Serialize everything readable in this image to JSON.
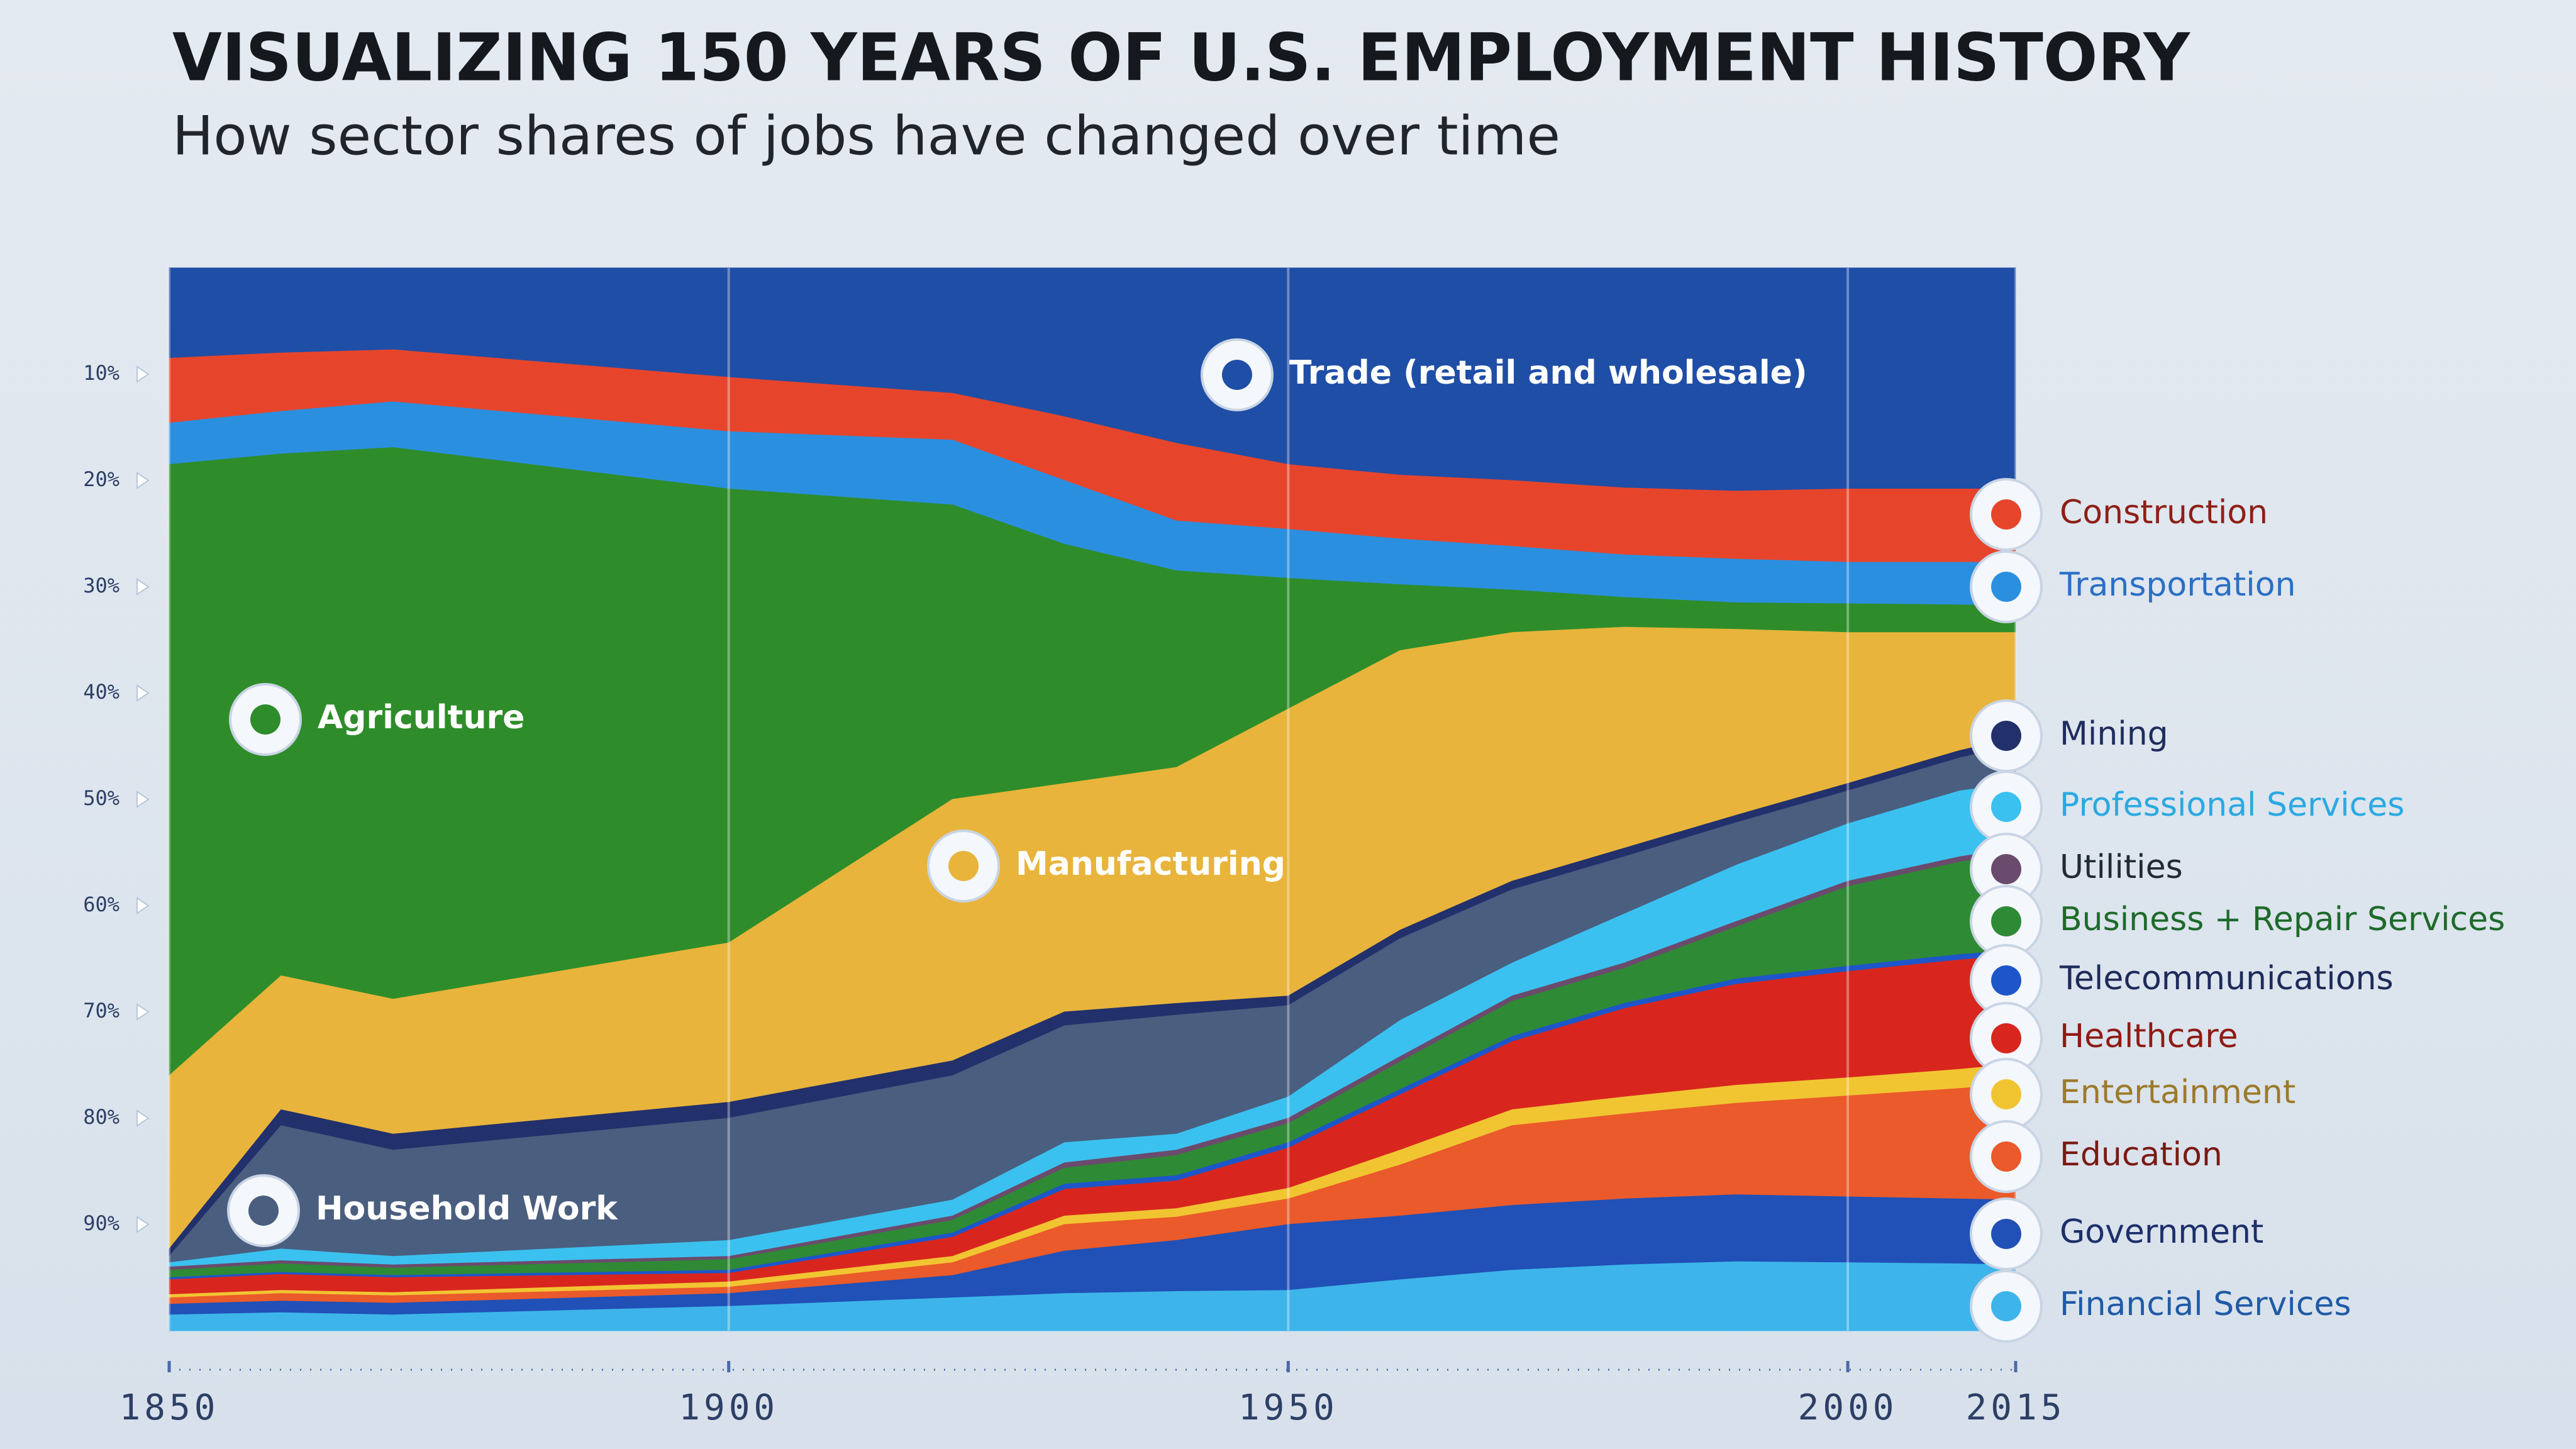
{
  "chart_data": {
    "type": "stacked_area",
    "title": "VISUALIZING 150 YEARS OF U.S. EMPLOYMENT HISTORY",
    "subtitle": "How sector shares of jobs have changed over time",
    "x": [
      1850,
      1860,
      1870,
      1900,
      1920,
      1930,
      1940,
      1950,
      1960,
      1970,
      1980,
      1990,
      2000,
      2010,
      2015
    ],
    "xlim": [
      1850,
      2015
    ],
    "xticks": [
      1850,
      1900,
      1950,
      2000,
      2015
    ],
    "ylim": [
      0,
      100
    ],
    "y_reversed": true,
    "yticks": [
      {
        "value": 10,
        "label": "10%"
      },
      {
        "value": 20,
        "label": "20%"
      },
      {
        "value": 30,
        "label": "30%"
      },
      {
        "value": 40,
        "label": "40%"
      },
      {
        "value": 50,
        "label": "50%"
      },
      {
        "value": 60,
        "label": "60%"
      },
      {
        "value": 70,
        "label": "70%"
      },
      {
        "value": 80,
        "label": "80%"
      },
      {
        "value": 90,
        "label": "90%"
      }
    ],
    "grid": true,
    "series": [
      {
        "name": "Trade (retail and wholesale)",
        "color": "#1f4ea6",
        "values": [
          8.5,
          8,
          7.7,
          10.3,
          11.8,
          14,
          16.5,
          18.5,
          19.5,
          20,
          20.7,
          21,
          20.8,
          20.8,
          20.8
        ]
      },
      {
        "name": "Construction",
        "color": "#e6452c",
        "values": [
          6.1,
          5.5,
          4.9,
          5.1,
          4.4,
          6,
          7.3,
          6.1,
          6,
          6.2,
          6.3,
          6.4,
          6.9,
          6.9,
          6.9
        ]
      },
      {
        "name": "Transportation",
        "color": "#2b8fe0",
        "values": [
          3.9,
          4,
          4.3,
          5.4,
          6.1,
          6,
          4.7,
          4.6,
          4.3,
          4.1,
          4,
          4.1,
          3.9,
          4,
          4.1
        ]
      },
      {
        "name": "Agriculture",
        "color": "#2e8d2a",
        "values": [
          57.5,
          49.1,
          51.9,
          42.7,
          27.7,
          22.5,
          18.5,
          12.3,
          6.2,
          4,
          2.8,
          2.5,
          2.7,
          2.6,
          2.5
        ]
      },
      {
        "name": "Manufacturing",
        "color": "#e8b43b",
        "values": [
          16.3,
          12.6,
          12.7,
          15,
          24.6,
          21.5,
          22.2,
          27,
          26.3,
          23.4,
          20.8,
          17.5,
          14.2,
          11.1,
          9.9
        ]
      },
      {
        "name": "Mining",
        "color": "#22306c",
        "values": [
          0.7,
          1.5,
          1.5,
          1.5,
          1.4,
          1.3,
          1.1,
          0.9,
          0.8,
          0.8,
          0.8,
          0.7,
          0.7,
          0.7,
          0.7
        ]
      },
      {
        "name": "Household Work",
        "color": "#4a5e7f",
        "values": [
          0.6,
          11.6,
          10,
          11.5,
          11.7,
          11,
          11.2,
          8.6,
          7.7,
          6.9,
          5.4,
          4,
          3.1,
          3.1,
          3.6
        ]
      },
      {
        "name": "Professional Services",
        "color": "#3bc1ef",
        "values": [
          0.4,
          1.1,
          0.8,
          1.5,
          1.5,
          1.9,
          1.5,
          2,
          3.4,
          3.1,
          4.6,
          5.3,
          5.4,
          6.2,
          6.1
        ]
      },
      {
        "name": "Utilities",
        "color": "#6b4b6d",
        "values": [
          0.3,
          0.3,
          0.3,
          0.3,
          0.4,
          0.5,
          0.5,
          0.5,
          0.5,
          0.5,
          0.5,
          0.5,
          0.5,
          0.5,
          0.5
        ]
      },
      {
        "name": "Business + Repair Services",
        "color": "#2f8a35",
        "values": [
          0.7,
          0.8,
          0.7,
          1,
          1.2,
          1.5,
          1.9,
          1.8,
          2.6,
          3.3,
          3.3,
          4.9,
          7.5,
          8.7,
          9.1
        ]
      },
      {
        "name": "Telecommunications",
        "color": "#1e56c9",
        "values": [
          0.2,
          0.2,
          0.2,
          0.3,
          0.4,
          0.5,
          0.5,
          0.5,
          0.5,
          0.5,
          0.5,
          0.5,
          0.5,
          0.5,
          0.5
        ]
      },
      {
        "name": "Healthcare",
        "color": "#d8261e",
        "values": [
          1.4,
          1.5,
          1.4,
          0.8,
          1.8,
          2.5,
          2.6,
          3.8,
          5.2,
          6.4,
          8.3,
          9.5,
          10,
          10.3,
          10.2
        ]
      },
      {
        "name": "Entertainment",
        "color": "#f1c532",
        "values": [
          0.3,
          0.3,
          0.3,
          0.5,
          0.6,
          0.8,
          0.8,
          1,
          1.4,
          1.5,
          1.6,
          1.7,
          1.7,
          1.8,
          1.9
        ]
      },
      {
        "name": "Education",
        "color": "#ea5a2a",
        "values": [
          0.6,
          0.7,
          0.7,
          0.6,
          1.2,
          2.5,
          2.2,
          2.4,
          4.8,
          7.5,
          8,
          8.6,
          9.5,
          10.4,
          10.9
        ]
      },
      {
        "name": "Government",
        "color": "#2150b7",
        "values": [
          1,
          1.1,
          1.1,
          1.2,
          2.1,
          4,
          4.8,
          6.2,
          6,
          6.1,
          6.2,
          6.3,
          6.2,
          6.1,
          6.1
        ]
      },
      {
        "name": "Financial Services",
        "color": "#3db5ea",
        "values": [
          1.5,
          1.7,
          1.5,
          2.3,
          3.1,
          3.5,
          3.7,
          3.8,
          4.8,
          5.7,
          6.2,
          6.5,
          6.4,
          6.3,
          6.2
        ]
      }
    ]
  }
}
